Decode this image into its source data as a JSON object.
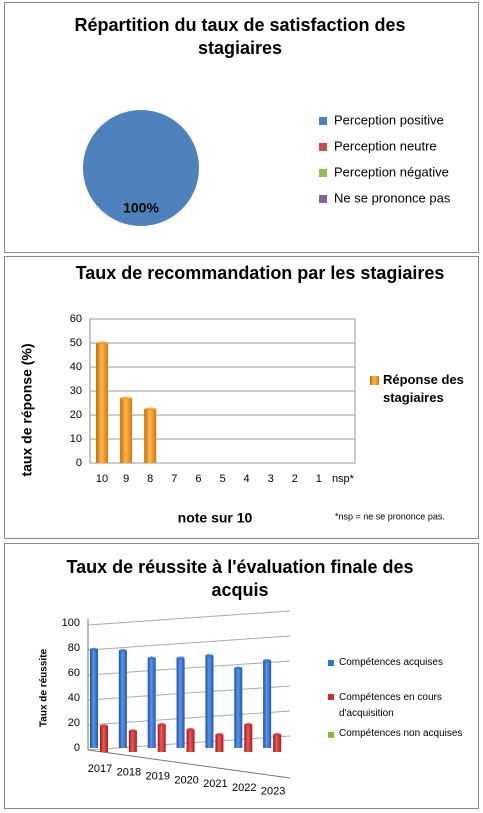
{
  "chart_data": [
    {
      "type": "pie",
      "title": "Répartition du taux de satisfaction des stagiaires",
      "categories": [
        "Perception positive",
        "Perception neutre",
        "Perception négative",
        "Ne se prononce pas"
      ],
      "values": [
        100,
        0,
        0,
        0
      ],
      "value_labels": [
        "100%",
        null,
        null,
        null
      ],
      "colors": [
        "#4f81bd",
        "#c0504d",
        "#9bbb59",
        "#8064a2"
      ]
    },
    {
      "type": "bar",
      "title": "Taux de recommandation par les stagiaires",
      "categories": [
        "10",
        "9",
        "8",
        "7",
        "6",
        "5",
        "4",
        "3",
        "2",
        "1",
        "nsp*"
      ],
      "series": [
        {
          "name": "Réponse des stagiaires",
          "color": "#f59a23",
          "values": [
            50,
            27,
            22.5,
            0,
            0,
            0,
            0,
            0,
            0,
            0,
            0
          ]
        }
      ],
      "ylabel": "taux de réponse (%)",
      "xlabel": "note sur 10",
      "note": "*nsp = ne se prononce pas.",
      "ylim": [
        0,
        60
      ],
      "yticks": [
        0,
        10,
        20,
        30,
        40,
        50,
        60
      ],
      "grid": true
    },
    {
      "type": "bar",
      "title": "Taux de réussite à l'évaluation finale des acquis",
      "categories": [
        "2017",
        "2018",
        "2019",
        "2020",
        "2021",
        "2022",
        "2023"
      ],
      "series": [
        {
          "name": "Compétences acquises",
          "color": "#2e6fd0",
          "values": [
            79,
            78,
            72,
            72,
            74,
            64,
            70
          ]
        },
        {
          "name": "Compétences en cours d'acquisition",
          "color": "#d62b2b",
          "values": [
            21,
            17,
            22,
            18,
            14,
            22,
            14
          ]
        },
        {
          "name": "Compétences non acquises",
          "color": "#8ab83b",
          "values": [
            0,
            0,
            0,
            0,
            0,
            0,
            0
          ]
        }
      ],
      "ylabel": "Taux de réussite",
      "ylim": [
        0,
        100
      ],
      "yticks": [
        0,
        20,
        40,
        60,
        80,
        100
      ],
      "grid": true
    }
  ]
}
